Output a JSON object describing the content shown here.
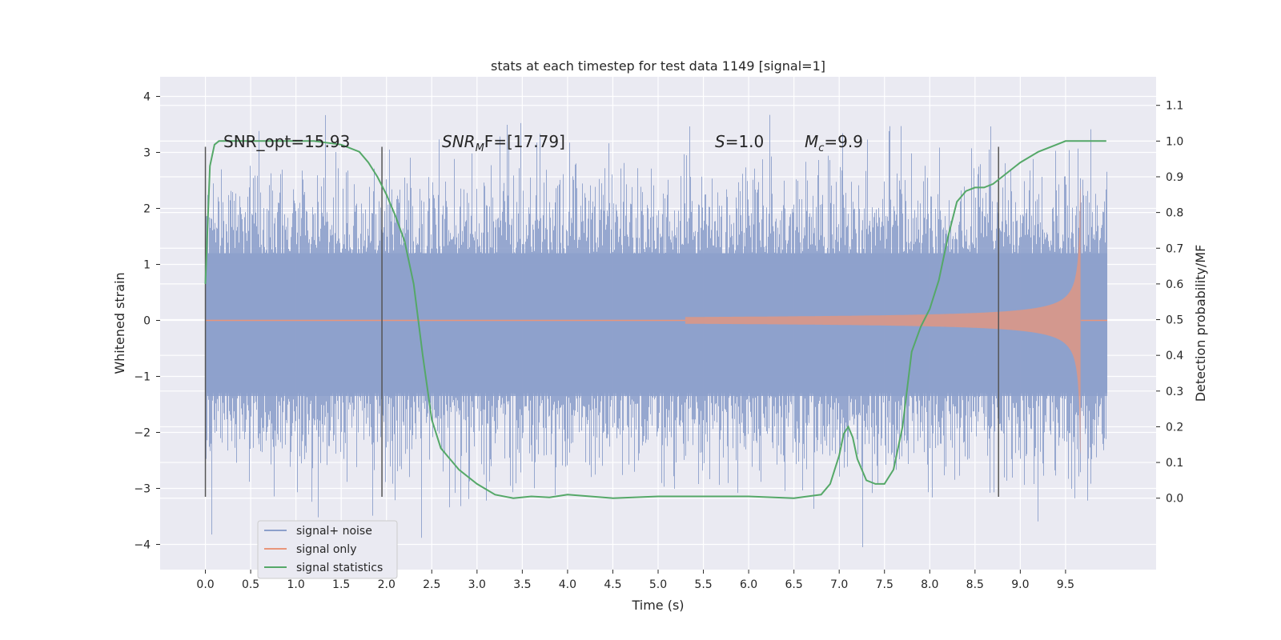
{
  "chart_data": {
    "type": "line",
    "title": "stats at each timestep for test data 1149 [signal=1]",
    "xlabel": "Time (s)",
    "ylabel_left": "Whitened strain",
    "ylabel_right": "Detection probability/MF",
    "xlim": [
      -0.5,
      10.5
    ],
    "ylim_left": [
      -4.45,
      4.35
    ],
    "ylim_right": [
      -0.2,
      1.18
    ],
    "x_ticks": [
      0.0,
      0.5,
      1.0,
      1.5,
      2.0,
      2.5,
      3.0,
      3.5,
      4.0,
      4.5,
      5.0,
      5.5,
      6.0,
      6.5,
      7.0,
      7.5,
      8.0,
      8.5,
      9.0,
      9.5
    ],
    "x_tick_labels": [
      "0.0",
      "0.5",
      "1.0",
      "1.5",
      "2.0",
      "2.5",
      "3.0",
      "3.5",
      "4.0",
      "4.5",
      "5.0",
      "5.5",
      "6.0",
      "6.5",
      "7.0",
      "7.5",
      "8.0",
      "8.5",
      "9.0",
      "9.5"
    ],
    "y_left_ticks": [
      4,
      3,
      2,
      1,
      0,
      -1,
      -2,
      -3,
      -4
    ],
    "y_left_tick_labels": [
      "4",
      "3",
      "2",
      "1",
      "0",
      "−1",
      "−2",
      "−3",
      "−4"
    ],
    "y_right_ticks": [
      1.1,
      1.0,
      0.9,
      0.8,
      0.7,
      0.6,
      0.5,
      0.4,
      0.3,
      0.2,
      0.1,
      0.0
    ],
    "y_right_tick_labels": [
      "1.1",
      "1.0",
      "0.9",
      "0.8",
      "0.7",
      "0.6",
      "0.5",
      "0.4",
      "0.3",
      "0.2",
      "0.1",
      "0.0"
    ],
    "grid": true,
    "legend_position": "bottom-left",
    "legend": [
      "signal+ noise",
      "signal only",
      "signal statistics"
    ],
    "colors": {
      "noise": "#8da0cb",
      "signal": "#e9967a",
      "stats": "#55a868",
      "vline": "#555555",
      "background": "#eaeaf2"
    },
    "noise_envelope": {
      "t_start": 0.0,
      "t_end": 9.96,
      "upper_typical": 2.3,
      "lower_typical": -2.4,
      "peak_max": 4.0,
      "peak_min": -4.05
    },
    "signal_only": {
      "t_start": 5.3,
      "t_merger": 9.67,
      "max_amplitude": 2.4
    },
    "signal_statistics": {
      "x": [
        0.0,
        0.05,
        0.1,
        0.15,
        0.2,
        0.4,
        0.8,
        1.2,
        1.5,
        1.7,
        1.8,
        1.9,
        2.0,
        2.1,
        2.2,
        2.3,
        2.4,
        2.5,
        2.6,
        2.7,
        2.8,
        3.0,
        3.2,
        3.4,
        3.6,
        3.8,
        4.0,
        4.5,
        5.0,
        5.5,
        6.0,
        6.5,
        6.8,
        6.9,
        7.0,
        7.05,
        7.1,
        7.15,
        7.2,
        7.3,
        7.4,
        7.5,
        7.55,
        7.6,
        7.7,
        7.8,
        7.9,
        8.0,
        8.1,
        8.2,
        8.3,
        8.4,
        8.5,
        8.6,
        8.7,
        8.8,
        9.0,
        9.2,
        9.4,
        9.5,
        9.6,
        9.8,
        9.95
      ],
      "y": [
        0.6,
        0.93,
        0.99,
        1.0,
        1.0,
        1.0,
        1.0,
        1.0,
        0.99,
        0.97,
        0.94,
        0.9,
        0.85,
        0.79,
        0.72,
        0.6,
        0.4,
        0.22,
        0.14,
        0.11,
        0.08,
        0.04,
        0.01,
        0.0,
        0.005,
        0.002,
        0.01,
        0.0,
        0.005,
        0.005,
        0.005,
        0.0,
        0.01,
        0.04,
        0.12,
        0.18,
        0.2,
        0.17,
        0.11,
        0.05,
        0.04,
        0.04,
        0.06,
        0.08,
        0.2,
        0.41,
        0.48,
        0.53,
        0.61,
        0.73,
        0.83,
        0.86,
        0.87,
        0.87,
        0.88,
        0.9,
        0.94,
        0.97,
        0.99,
        1.0,
        1.0,
        1.0,
        1.0
      ]
    },
    "vertical_lines": [
      {
        "x": 0.0,
        "y_range": [
          -3.15,
          3.1
        ]
      },
      {
        "x": 1.95,
        "y_range": [
          -3.15,
          3.1
        ]
      },
      {
        "x": 8.76,
        "y_range": [
          -3.15,
          3.1
        ]
      }
    ],
    "annotations": [
      {
        "text": "SNR_opt=15.93",
        "x": 0.2,
        "y": 3.2
      },
      {
        "text_main": "SNR",
        "text_sub": "M",
        "text_rest": "F=[17.79]",
        "x": 2.6,
        "y": 3.2
      },
      {
        "text_main": "S",
        "text_rest": "=1.0",
        "x": 5.6,
        "y": 3.2
      },
      {
        "text_main": "M",
        "text_sub": "c",
        "text_rest": "=9.9",
        "x": 6.6,
        "y": 3.2
      }
    ]
  }
}
